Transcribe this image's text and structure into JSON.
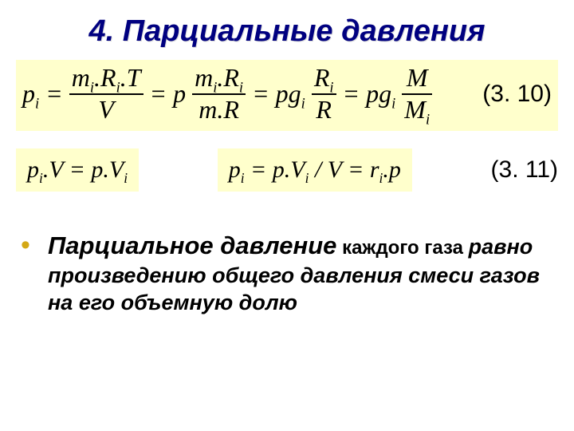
{
  "title": "4. Парциальные давления",
  "eq1": {
    "lhs": "p<sub>i</sub> =",
    "frac1_num": "m<sub>i</sub>.R<sub>i</sub>.T",
    "frac1_den": "V",
    "eq_a": " = p",
    "frac2_num": "m<sub>i</sub>.R<sub>i</sub>",
    "frac2_den": "m.R",
    "eq_b": " = pg<sub>i</sub>",
    "frac3_num": "R<sub>i</sub>",
    "frac3_den": "R",
    "eq_c": " = pg<sub>i</sub>",
    "frac4_num": "M",
    "frac4_den": "M<sub>i</sub>"
  },
  "ref1": "(3. 10)",
  "eq2a": "p<sub>i</sub>.V = p.V<sub>i</sub>",
  "eq2b": "p<sub>i</sub> = p.V<sub>i</sub> / V = r<sub>i</sub>.p",
  "ref2": "(3. 11)",
  "bullet_text": {
    "term": "Парциальное давление",
    "small1": " каждого газа ",
    "term2": "равно произведению общего давления смеси газов на его объемную долю"
  },
  "style": {
    "title_color": "#000080",
    "eq_bg": "#ffffcc",
    "bullet_color": "#d4a814",
    "page_bg": "#ffffff"
  }
}
